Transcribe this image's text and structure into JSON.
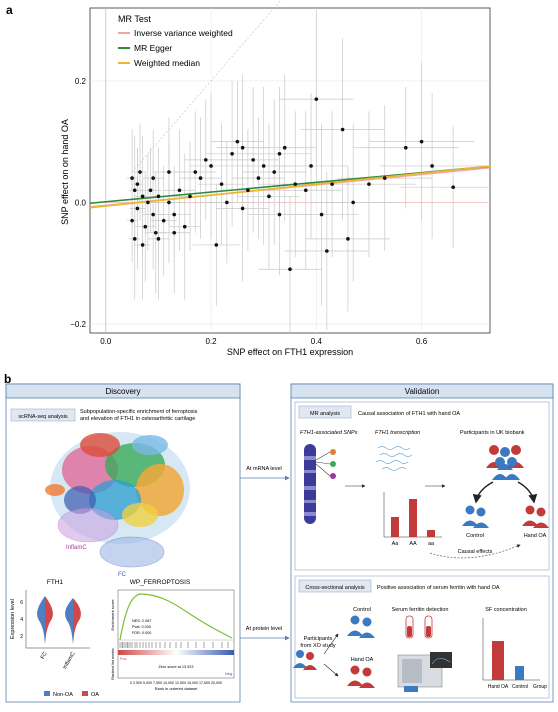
{
  "panel_a": {
    "letter": "a",
    "xlabel": "SNP effect on FTH1 expression",
    "ylabel": "SNP effect on on hand OA",
    "legend_title": "MR Test",
    "legend": [
      {
        "name": "Inverse variance weighted",
        "color": "#f4a3a3"
      },
      {
        "name": "MR Egger",
        "color": "#2e8b3a"
      },
      {
        "name": "Weighted median",
        "color": "#e8b830"
      }
    ]
  },
  "chart_data": {
    "type": "scatter",
    "xlim": [
      -0.03,
      0.73
    ],
    "ylim": [
      -0.215,
      0.32
    ],
    "x_ticks": [
      "0.0",
      "0.2",
      "0.4",
      "0.6"
    ],
    "y_ticks": [
      "0.2",
      "0.0",
      "−0.2"
    ],
    "x_tick_values": [
      0.0,
      0.2,
      0.4,
      0.6
    ],
    "y_tick_values": [
      0.2,
      0.0,
      -0.2
    ],
    "grid": true,
    "legend_placement": "top-left",
    "lines": [
      {
        "name": "Inverse variance weighted",
        "intercept": -0.005,
        "slope": 0.085,
        "color": "#f4a3a3"
      },
      {
        "name": "MR Egger",
        "intercept": 0.001,
        "slope": 0.08,
        "color": "#2e8b3a"
      },
      {
        "name": "Weighted median",
        "intercept": -0.006,
        "slope": 0.09,
        "color": "#e8b830"
      }
    ],
    "points": [
      {
        "x": 0.05,
        "y": 0.04,
        "ex": 0.01,
        "ey": 0.08
      },
      {
        "x": 0.055,
        "y": 0.02,
        "ex": 0.01,
        "ey": 0.09
      },
      {
        "x": 0.06,
        "y": -0.01,
        "ex": 0.015,
        "ey": 0.1
      },
      {
        "x": 0.05,
        "y": -0.03,
        "ex": 0.01,
        "ey": 0.07
      },
      {
        "x": 0.065,
        "y": 0.05,
        "ex": 0.012,
        "ey": 0.08
      },
      {
        "x": 0.07,
        "y": 0.01,
        "ex": 0.015,
        "ey": 0.1
      },
      {
        "x": 0.06,
        "y": 0.03,
        "ex": 0.01,
        "ey": 0.06
      },
      {
        "x": 0.075,
        "y": -0.04,
        "ex": 0.02,
        "ey": 0.09
      },
      {
        "x": 0.08,
        "y": 0.0,
        "ex": 0.02,
        "ey": 0.08
      },
      {
        "x": 0.085,
        "y": 0.02,
        "ex": 0.02,
        "ey": 0.07
      },
      {
        "x": 0.09,
        "y": -0.02,
        "ex": 0.02,
        "ey": 0.09
      },
      {
        "x": 0.095,
        "y": -0.05,
        "ex": 0.02,
        "ey": 0.1
      },
      {
        "x": 0.1,
        "y": 0.01,
        "ex": 0.025,
        "ey": 0.08
      },
      {
        "x": 0.11,
        "y": -0.03,
        "ex": 0.025,
        "ey": 0.09
      },
      {
        "x": 0.12,
        "y": 0.0,
        "ex": 0.03,
        "ey": 0.1
      },
      {
        "x": 0.13,
        "y": -0.02,
        "ex": 0.03,
        "ey": 0.08
      },
      {
        "x": 0.14,
        "y": 0.02,
        "ex": 0.03,
        "ey": 0.1
      },
      {
        "x": 0.15,
        "y": -0.04,
        "ex": 0.03,
        "ey": 0.12
      },
      {
        "x": 0.16,
        "y": 0.01,
        "ex": 0.035,
        "ey": 0.09
      },
      {
        "x": 0.07,
        "y": -0.07,
        "ex": 0.015,
        "ey": 0.09
      },
      {
        "x": 0.055,
        "y": -0.06,
        "ex": 0.01,
        "ey": 0.1
      },
      {
        "x": 0.1,
        "y": -0.06,
        "ex": 0.02,
        "ey": 0.1
      },
      {
        "x": 0.13,
        "y": -0.05,
        "ex": 0.03,
        "ey": 0.1
      },
      {
        "x": 0.17,
        "y": 0.05,
        "ex": 0.04,
        "ey": 0.1
      },
      {
        "x": 0.2,
        "y": 0.06,
        "ex": 0.04,
        "ey": 0.12
      },
      {
        "x": 0.22,
        "y": 0.03,
        "ex": 0.045,
        "ey": 0.1
      },
      {
        "x": 0.24,
        "y": 0.08,
        "ex": 0.05,
        "ey": 0.12
      },
      {
        "x": 0.25,
        "y": 0.1,
        "ex": 0.05,
        "ey": 0.1
      },
      {
        "x": 0.26,
        "y": -0.01,
        "ex": 0.05,
        "ey": 0.12
      },
      {
        "x": 0.27,
        "y": 0.02,
        "ex": 0.05,
        "ey": 0.1
      },
      {
        "x": 0.21,
        "y": -0.07,
        "ex": 0.045,
        "ey": 0.1
      },
      {
        "x": 0.23,
        "y": 0.0,
        "ex": 0.05,
        "ey": 0.1
      },
      {
        "x": 0.28,
        "y": 0.07,
        "ex": 0.05,
        "ey": 0.12
      },
      {
        "x": 0.29,
        "y": 0.04,
        "ex": 0.05,
        "ey": 0.1
      },
      {
        "x": 0.3,
        "y": 0.06,
        "ex": 0.06,
        "ey": 0.13
      },
      {
        "x": 0.31,
        "y": 0.01,
        "ex": 0.06,
        "ey": 0.12
      },
      {
        "x": 0.32,
        "y": 0.05,
        "ex": 0.06,
        "ey": 0.12
      },
      {
        "x": 0.33,
        "y": -0.02,
        "ex": 0.06,
        "ey": 0.1
      },
      {
        "x": 0.34,
        "y": 0.09,
        "ex": 0.06,
        "ey": 0.12
      },
      {
        "x": 0.35,
        "y": -0.11,
        "ex": 0.06,
        "ey": 0.12
      },
      {
        "x": 0.36,
        "y": 0.03,
        "ex": 0.07,
        "ey": 0.12
      },
      {
        "x": 0.38,
        "y": 0.02,
        "ex": 0.07,
        "ey": 0.13
      },
      {
        "x": 0.39,
        "y": 0.06,
        "ex": 0.07,
        "ey": 0.12
      },
      {
        "x": 0.4,
        "y": 0.17,
        "ex": 0.07,
        "ey": 0.15
      },
      {
        "x": 0.41,
        "y": -0.02,
        "ex": 0.07,
        "ey": 0.15
      },
      {
        "x": 0.42,
        "y": -0.08,
        "ex": 0.08,
        "ey": 0.13
      },
      {
        "x": 0.43,
        "y": 0.03,
        "ex": 0.08,
        "ey": 0.12
      },
      {
        "x": 0.45,
        "y": 0.12,
        "ex": 0.08,
        "ey": 0.15
      },
      {
        "x": 0.46,
        "y": -0.06,
        "ex": 0.08,
        "ey": 0.12
      },
      {
        "x": 0.47,
        "y": 0.0,
        "ex": 0.08,
        "ey": 0.13
      },
      {
        "x": 0.5,
        "y": 0.03,
        "ex": 0.09,
        "ey": 0.12
      },
      {
        "x": 0.53,
        "y": 0.04,
        "ex": 0.09,
        "ey": 0.12
      },
      {
        "x": 0.57,
        "y": 0.09,
        "ex": 0.1,
        "ey": 0.1
      },
      {
        "x": 0.6,
        "y": 0.1,
        "ex": 0.1,
        "ey": 0.13
      },
      {
        "x": 0.62,
        "y": 0.06,
        "ex": 0.1,
        "ey": 0.12
      },
      {
        "x": 0.66,
        "y": 0.025,
        "ex": 0.1,
        "ey": 0.1
      },
      {
        "x": 0.18,
        "y": 0.04,
        "ex": 0.04,
        "ey": 0.1
      },
      {
        "x": 0.19,
        "y": 0.07,
        "ex": 0.04,
        "ey": 0.1
      },
      {
        "x": 0.26,
        "y": 0.09,
        "ex": 0.05,
        "ey": 0.12
      },
      {
        "x": 0.33,
        "y": 0.08,
        "ex": 0.06,
        "ey": 0.11
      },
      {
        "x": 0.09,
        "y": 0.04,
        "ex": 0.02,
        "ey": 0.08
      },
      {
        "x": 0.12,
        "y": 0.05,
        "ex": 0.03,
        "ey": 0.09
      }
    ]
  },
  "panel_b": {
    "letter": "b",
    "discovery": {
      "header": "Discovery",
      "tag": "scRNA-seq analysis",
      "desc_line1": "Subpopulation-specific enrichment of ferroptosis",
      "desc_line2": "and elevation of FTH1 in osteoarthritic cartilage",
      "inflamc_label": "InflamC",
      "fc_label": "FC",
      "violin_title": "FTH1",
      "violin_ylabel": "Expression level",
      "violin_yticks": [
        "2",
        "4",
        "6"
      ],
      "violin_groups": [
        "FC",
        "InflamC"
      ],
      "legend_non_oa": "Non-OA",
      "legend_oa": "OA",
      "color_non_oa": "#4f7fc0",
      "color_oa": "#d04848",
      "gsea_title": "WP_FERROPTOSIS",
      "gsea_ylabel": "Enrichment score",
      "gsea_ylabel2": "Ranked list metric",
      "gsea_stats": [
        "NES: 2.087",
        "Pval: 0.000",
        "FDR: 0.000"
      ],
      "gsea_pos": "Pos",
      "gsea_neg": "Neg",
      "gsea_zero": "Zero score at 13 923",
      "gsea_xlabel": "Rank in ordered dataset",
      "gsea_xticks": "0 2,500 5,000 7,500 10,000 12,500 15,000 17,500 20,000"
    },
    "arrow_mrna": "At mRNA level",
    "arrow_protein": "At protein level",
    "validation": {
      "header": "Validation",
      "mr_tag": "MR analysis",
      "mr_desc": "Causal association of FTH1 with hand OA",
      "snps_label": "FTH1-associated SNPs",
      "transcription_label": "FTH1 transcription",
      "ukb_label": "Participants in UK biobank",
      "control_label": "Control",
      "hand_oa_label": "Hand OA",
      "bar_labels": [
        "Aa",
        "AA",
        "aa"
      ],
      "causal_label": "Causal effects",
      "cs_tag": "Cross-sectional analysis",
      "cs_desc": "Positive association of serum ferritin with hand OA",
      "participants_line1": "Participants",
      "participants_line2": "from XO study",
      "cs_control": "Control",
      "cs_hand_oa": "Hand OA",
      "sf_detect_label": "Serum ferritin detection",
      "sf_conc_label": "SF concentration",
      "sf_bar_labels": [
        "Hand OA",
        "Control",
        "Group"
      ]
    }
  }
}
